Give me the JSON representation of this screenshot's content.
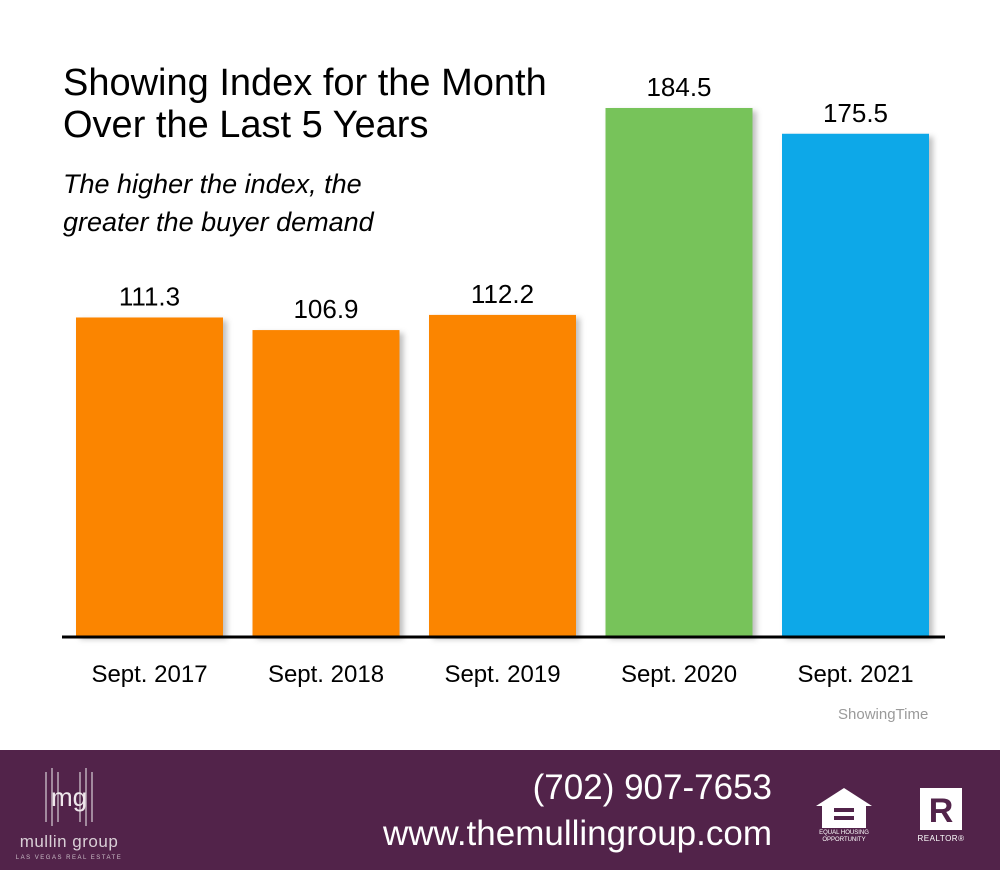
{
  "title": "Showing Index for the Month\nOver the Last 5 Years",
  "subtitle": "The higher the index, the\ngreater the buyer demand",
  "source": "ShowingTime",
  "chart_data": {
    "type": "bar",
    "title": "Showing Index for the Month Over the Last 5 Years",
    "subtitle": "The higher the index, the greater the buyer demand",
    "categories": [
      "Sept. 2017",
      "Sept. 2018",
      "Sept. 2019",
      "Sept. 2020",
      "Sept. 2021"
    ],
    "values": [
      111.3,
      106.9,
      112.2,
      184.5,
      175.5
    ],
    "value_labels": [
      "111.3",
      "106.9",
      "112.2",
      "184.5",
      "175.5"
    ],
    "colors": [
      "#fb8500",
      "#fb8500",
      "#fb8500",
      "#77c35a",
      "#11a8e8"
    ],
    "xlabel": "",
    "ylabel": "",
    "ylim": [
      0,
      184.5
    ],
    "grid": false,
    "legend": "none"
  },
  "footer": {
    "background": "#52234a",
    "logo_mark": "mg",
    "logo_name": "mullin group",
    "logo_tagline": "LAS VEGAS REAL ESTATE",
    "phone": "(702) 907-7653",
    "website": "www.themullingroup.com",
    "equal_housing_icon": "equal-housing-opportunity-icon",
    "equal_housing_text": "EQUAL HOUSING\nOPPORTUNITY",
    "realtor_icon": "realtor-icon",
    "realtor_text": "REALTOR®"
  }
}
